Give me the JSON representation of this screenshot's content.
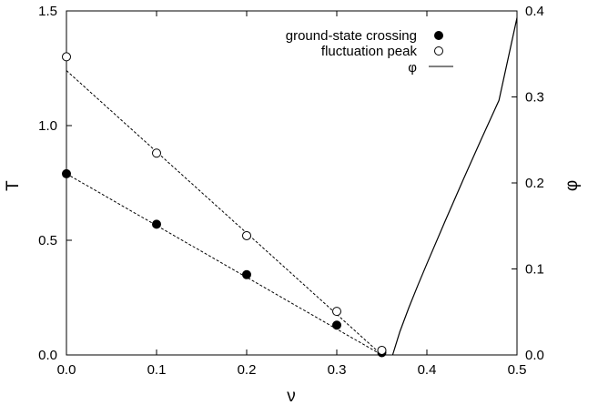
{
  "chart_data": {
    "type": "scatter",
    "title": "",
    "xlabel": "ν",
    "ylabel": "T",
    "y2label": "φ",
    "xlim": [
      0.0,
      0.5
    ],
    "ylim": [
      0.0,
      1.5
    ],
    "y2lim": [
      0.0,
      0.4
    ],
    "grid": false,
    "legend_position": "top-right",
    "x_ticks": [
      "0.0",
      "0.1",
      "0.2",
      "0.3",
      "0.4",
      "0.5"
    ],
    "y_ticks": [
      "0.0",
      "0.5",
      "1.0",
      "1.5"
    ],
    "y2_ticks": [
      "0.0",
      "0.1",
      "0.2",
      "0.3",
      "0.4"
    ],
    "series": [
      {
        "name": "ground-state crossing",
        "marker": "filled-circle",
        "axis": "left",
        "x": [
          0.0,
          0.1,
          0.2,
          0.3,
          0.35
        ],
        "y": [
          0.79,
          0.57,
          0.35,
          0.13,
          0.01
        ]
      },
      {
        "name": "fluctuation peak",
        "marker": "open-circle",
        "axis": "left",
        "x": [
          0.0,
          0.1,
          0.2,
          0.3,
          0.35
        ],
        "y": [
          1.3,
          0.88,
          0.52,
          0.19,
          0.02
        ]
      },
      {
        "name": "φ",
        "marker": "line",
        "axis": "right",
        "x": [
          0.362,
          0.37,
          0.38,
          0.39,
          0.4,
          0.42,
          0.44,
          0.46,
          0.48,
          0.5
        ],
        "y": [
          0.0,
          0.027,
          0.055,
          0.081,
          0.106,
          0.155,
          0.203,
          0.25,
          0.296,
          0.392
        ]
      }
    ],
    "fit_lines": [
      {
        "series": "ground-state crossing",
        "style": "dashed",
        "x": [
          0.0,
          0.35
        ],
        "y": [
          0.79,
          0.0
        ]
      },
      {
        "series": "fluctuation peak",
        "style": "dashed",
        "x": [
          0.0,
          0.35
        ],
        "y": [
          1.24,
          0.0
        ]
      }
    ]
  }
}
